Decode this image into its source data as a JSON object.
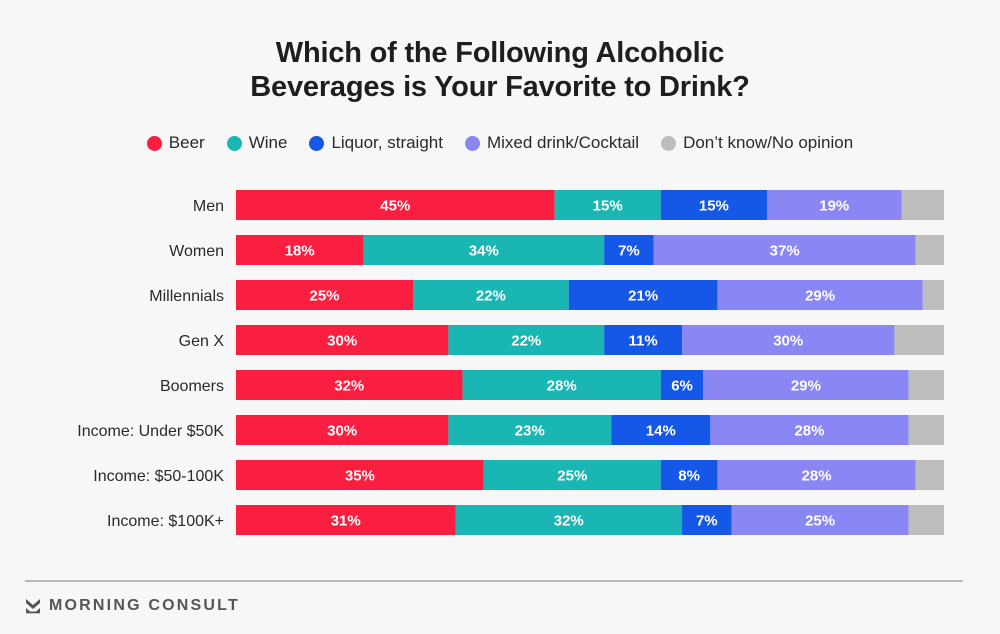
{
  "chart_data": {
    "type": "bar",
    "orientation": "horizontal",
    "stacked": true,
    "title": "Which of the Following Alcoholic Beverages is Your Favorite to Drink?",
    "title_lines": [
      "Which of the Following Alcoholic",
      "Beverages is Your Favorite to Drink?"
    ],
    "xlabel": "",
    "ylabel": "",
    "xlim": [
      0,
      100
    ],
    "unit": "%",
    "grid": false,
    "legend_position": "top-center",
    "categories": [
      "Men",
      "Women",
      "Millennials",
      "Gen X",
      "Boomers",
      "Income: Under $50K",
      "Income: $50-100K",
      "Income: $100K+"
    ],
    "series": [
      {
        "name": "Beer",
        "color": "#fa1f40",
        "values": [
          45,
          18,
          25,
          30,
          32,
          30,
          35,
          31
        ],
        "labeled": true
      },
      {
        "name": "Wine",
        "color": "#1ab6b3",
        "values": [
          15,
          34,
          22,
          22,
          28,
          23,
          25,
          32
        ],
        "labeled": true
      },
      {
        "name": "Liquor, straight",
        "color": "#1557e6",
        "values": [
          15,
          7,
          21,
          11,
          6,
          14,
          8,
          7
        ],
        "labeled": true
      },
      {
        "name": "Mixed drink/Cocktail",
        "color": "#8a87f5",
        "values": [
          19,
          37,
          29,
          30,
          29,
          28,
          28,
          25
        ],
        "labeled": true
      },
      {
        "name": "Don’t know/No opinion",
        "color": "#bdbdbd",
        "values": [
          6,
          4,
          3,
          7,
          5,
          5,
          4,
          5
        ],
        "labeled": false
      }
    ]
  },
  "footer": {
    "brand": "MORNING CONSULT",
    "logo_icon": "morning-consult-chevron-logo"
  }
}
